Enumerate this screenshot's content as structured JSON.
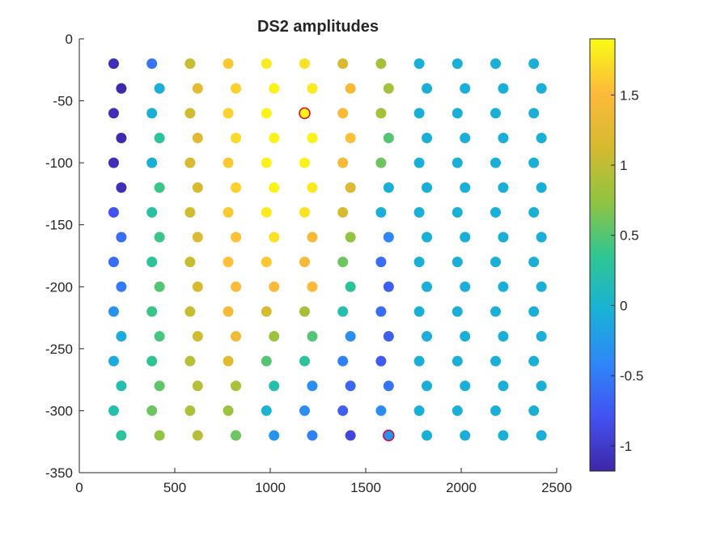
{
  "chart_data": {
    "type": "scatter",
    "title": "DS2 amplitudes",
    "xlabel": "",
    "ylabel": "",
    "xlim": [
      0,
      2500
    ],
    "ylim": [
      -350,
      0
    ],
    "x_ticks": [
      0,
      500,
      1000,
      1500,
      2000,
      2500
    ],
    "y_ticks": [
      0,
      -50,
      -100,
      -150,
      -200,
      -250,
      -300,
      -350
    ],
    "colorbar": {
      "clim": [
        -1.18,
        1.9
      ],
      "ticks": [
        -1,
        -0.5,
        0,
        0.5,
        1,
        1.5
      ],
      "colormap": "parula",
      "colormap_stops": [
        "#3e26a8",
        "#4352f1",
        "#2e87f7",
        "#19b2d5",
        "#30c690",
        "#91c441",
        "#d6ba2f",
        "#fdba3a",
        "#f9fb15"
      ]
    },
    "highlight_edge_color": "#e0002a",
    "points": [
      {
        "x": 180,
        "y": -20,
        "v": -1.1
      },
      {
        "x": 380,
        "y": -20,
        "v": -0.55
      },
      {
        "x": 580,
        "y": -20,
        "v": 1.05
      },
      {
        "x": 780,
        "y": -20,
        "v": 1.6
      },
      {
        "x": 980,
        "y": -20,
        "v": 1.8
      },
      {
        "x": 1180,
        "y": -20,
        "v": 1.75
      },
      {
        "x": 1380,
        "y": -20,
        "v": 1.15
      },
      {
        "x": 1580,
        "y": -20,
        "v": 0.85
      },
      {
        "x": 1780,
        "y": -20,
        "v": -0.05
      },
      {
        "x": 1980,
        "y": -20,
        "v": -0.05
      },
      {
        "x": 2180,
        "y": -20,
        "v": -0.05
      },
      {
        "x": 2380,
        "y": -20,
        "v": -0.05
      },
      {
        "x": 220,
        "y": -40,
        "v": -1.15
      },
      {
        "x": 420,
        "y": -40,
        "v": -0.05
      },
      {
        "x": 620,
        "y": -40,
        "v": 1.3
      },
      {
        "x": 820,
        "y": -40,
        "v": 1.65
      },
      {
        "x": 1020,
        "y": -40,
        "v": 1.85
      },
      {
        "x": 1220,
        "y": -40,
        "v": 1.8
      },
      {
        "x": 1420,
        "y": -40,
        "v": 1.45
      },
      {
        "x": 1620,
        "y": -40,
        "v": 0.85
      },
      {
        "x": 1820,
        "y": -40,
        "v": -0.05
      },
      {
        "x": 2020,
        "y": -40,
        "v": -0.05
      },
      {
        "x": 2220,
        "y": -40,
        "v": -0.05
      },
      {
        "x": 2420,
        "y": -40,
        "v": -0.05
      },
      {
        "x": 180,
        "y": -60,
        "v": -1.1
      },
      {
        "x": 380,
        "y": -60,
        "v": -0.05
      },
      {
        "x": 580,
        "y": -60,
        "v": 1.1
      },
      {
        "x": 780,
        "y": -60,
        "v": 1.65
      },
      {
        "x": 980,
        "y": -60,
        "v": 1.85
      },
      {
        "x": 1180,
        "y": -60,
        "v": 1.85,
        "highlight": true
      },
      {
        "x": 1380,
        "y": -60,
        "v": 1.5
      },
      {
        "x": 1580,
        "y": -60,
        "v": 0.85
      },
      {
        "x": 1780,
        "y": -60,
        "v": -0.05
      },
      {
        "x": 1980,
        "y": -60,
        "v": -0.05
      },
      {
        "x": 2180,
        "y": -60,
        "v": -0.05
      },
      {
        "x": 2380,
        "y": -60,
        "v": -0.05
      },
      {
        "x": 220,
        "y": -80,
        "v": -1.15
      },
      {
        "x": 420,
        "y": -80,
        "v": 0.3
      },
      {
        "x": 620,
        "y": -80,
        "v": 1.25
      },
      {
        "x": 820,
        "y": -80,
        "v": 1.7
      },
      {
        "x": 1020,
        "y": -80,
        "v": 1.85
      },
      {
        "x": 1220,
        "y": -80,
        "v": 1.85
      },
      {
        "x": 1420,
        "y": -80,
        "v": 1.55
      },
      {
        "x": 1620,
        "y": -80,
        "v": 0.5
      },
      {
        "x": 1820,
        "y": -80,
        "v": -0.05
      },
      {
        "x": 2020,
        "y": -80,
        "v": -0.05
      },
      {
        "x": 2220,
        "y": -80,
        "v": -0.05
      },
      {
        "x": 2420,
        "y": -80,
        "v": -0.05
      },
      {
        "x": 180,
        "y": -100,
        "v": -1.1
      },
      {
        "x": 380,
        "y": -100,
        "v": -0.05
      },
      {
        "x": 580,
        "y": -100,
        "v": 1.15
      },
      {
        "x": 780,
        "y": -100,
        "v": 1.6
      },
      {
        "x": 980,
        "y": -100,
        "v": 1.85
      },
      {
        "x": 1180,
        "y": -100,
        "v": 1.85
      },
      {
        "x": 1380,
        "y": -100,
        "v": 1.45
      },
      {
        "x": 1580,
        "y": -100,
        "v": 0.6
      },
      {
        "x": 1780,
        "y": -100,
        "v": -0.05
      },
      {
        "x": 1980,
        "y": -100,
        "v": -0.05
      },
      {
        "x": 2180,
        "y": -100,
        "v": -0.05
      },
      {
        "x": 2380,
        "y": -100,
        "v": -0.05
      },
      {
        "x": 220,
        "y": -120,
        "v": -1.1
      },
      {
        "x": 420,
        "y": -120,
        "v": 0.4
      },
      {
        "x": 620,
        "y": -120,
        "v": 1.15
      },
      {
        "x": 820,
        "y": -120,
        "v": 1.65
      },
      {
        "x": 1020,
        "y": -120,
        "v": 1.85
      },
      {
        "x": 1220,
        "y": -120,
        "v": 1.8
      },
      {
        "x": 1420,
        "y": -120,
        "v": 1.2
      },
      {
        "x": 1620,
        "y": -120,
        "v": -0.05
      },
      {
        "x": 1820,
        "y": -120,
        "v": -0.05
      },
      {
        "x": 2020,
        "y": -120,
        "v": -0.05
      },
      {
        "x": 2220,
        "y": -120,
        "v": -0.05
      },
      {
        "x": 2420,
        "y": -120,
        "v": -0.05
      },
      {
        "x": 180,
        "y": -140,
        "v": -0.8
      },
      {
        "x": 380,
        "y": -140,
        "v": 0.25
      },
      {
        "x": 580,
        "y": -140,
        "v": 1.1
      },
      {
        "x": 780,
        "y": -140,
        "v": 1.6
      },
      {
        "x": 980,
        "y": -140,
        "v": 1.8
      },
      {
        "x": 1180,
        "y": -140,
        "v": 1.75
      },
      {
        "x": 1380,
        "y": -140,
        "v": 1.15
      },
      {
        "x": 1580,
        "y": -140,
        "v": -0.05
      },
      {
        "x": 1780,
        "y": -140,
        "v": -0.05
      },
      {
        "x": 1980,
        "y": -140,
        "v": -0.05
      },
      {
        "x": 2180,
        "y": -140,
        "v": -0.05
      },
      {
        "x": 2380,
        "y": -140,
        "v": -0.05
      },
      {
        "x": 220,
        "y": -160,
        "v": -0.6
      },
      {
        "x": 420,
        "y": -160,
        "v": 0.4
      },
      {
        "x": 620,
        "y": -160,
        "v": 1.2
      },
      {
        "x": 820,
        "y": -160,
        "v": 1.55
      },
      {
        "x": 1020,
        "y": -160,
        "v": 1.75
      },
      {
        "x": 1220,
        "y": -160,
        "v": 1.45
      },
      {
        "x": 1420,
        "y": -160,
        "v": 0.75
      },
      {
        "x": 1620,
        "y": -160,
        "v": -0.4
      },
      {
        "x": 1820,
        "y": -160,
        "v": -0.05
      },
      {
        "x": 2020,
        "y": -160,
        "v": -0.05
      },
      {
        "x": 2220,
        "y": -160,
        "v": -0.05
      },
      {
        "x": 2420,
        "y": -160,
        "v": -0.05
      },
      {
        "x": 180,
        "y": -180,
        "v": -0.6
      },
      {
        "x": 380,
        "y": -180,
        "v": 0.3
      },
      {
        "x": 580,
        "y": -180,
        "v": 1.05
      },
      {
        "x": 780,
        "y": -180,
        "v": 1.55
      },
      {
        "x": 980,
        "y": -180,
        "v": 1.6
      },
      {
        "x": 1180,
        "y": -180,
        "v": 1.45
      },
      {
        "x": 1380,
        "y": -180,
        "v": 0.6
      },
      {
        "x": 1580,
        "y": -180,
        "v": -0.6
      },
      {
        "x": 1780,
        "y": -180,
        "v": -0.05
      },
      {
        "x": 1980,
        "y": -180,
        "v": -0.05
      },
      {
        "x": 2180,
        "y": -180,
        "v": -0.05
      },
      {
        "x": 2380,
        "y": -180,
        "v": -0.05
      },
      {
        "x": 220,
        "y": -200,
        "v": -0.5
      },
      {
        "x": 420,
        "y": -200,
        "v": 0.5
      },
      {
        "x": 620,
        "y": -200,
        "v": 1.15
      },
      {
        "x": 820,
        "y": -200,
        "v": 1.5
      },
      {
        "x": 1020,
        "y": -200,
        "v": 1.5
      },
      {
        "x": 1220,
        "y": -200,
        "v": 1.5
      },
      {
        "x": 1420,
        "y": -200,
        "v": 0.3
      },
      {
        "x": 1620,
        "y": -200,
        "v": -0.7
      },
      {
        "x": 1820,
        "y": -200,
        "v": -0.05
      },
      {
        "x": 2020,
        "y": -200,
        "v": -0.05
      },
      {
        "x": 2220,
        "y": -200,
        "v": -0.05
      },
      {
        "x": 2420,
        "y": -200,
        "v": -0.05
      },
      {
        "x": 180,
        "y": -220,
        "v": -0.3
      },
      {
        "x": 380,
        "y": -220,
        "v": 0.4
      },
      {
        "x": 580,
        "y": -220,
        "v": 1.05
      },
      {
        "x": 780,
        "y": -220,
        "v": 1.45
      },
      {
        "x": 980,
        "y": -220,
        "v": 1.15
      },
      {
        "x": 1180,
        "y": -220,
        "v": 0.85
      },
      {
        "x": 1380,
        "y": -220,
        "v": 0.2
      },
      {
        "x": 1580,
        "y": -220,
        "v": -0.6
      },
      {
        "x": 1780,
        "y": -220,
        "v": -0.05
      },
      {
        "x": 1980,
        "y": -220,
        "v": -0.05
      },
      {
        "x": 2180,
        "y": -220,
        "v": -0.05
      },
      {
        "x": 2380,
        "y": -220,
        "v": -0.05
      },
      {
        "x": 220,
        "y": -240,
        "v": -0.1
      },
      {
        "x": 420,
        "y": -240,
        "v": 0.45
      },
      {
        "x": 620,
        "y": -240,
        "v": 1.1
      },
      {
        "x": 820,
        "y": -240,
        "v": 1.4
      },
      {
        "x": 1020,
        "y": -240,
        "v": 0.8
      },
      {
        "x": 1220,
        "y": -240,
        "v": 0.5
      },
      {
        "x": 1420,
        "y": -240,
        "v": -0.35
      },
      {
        "x": 1620,
        "y": -240,
        "v": -0.7
      },
      {
        "x": 1820,
        "y": -240,
        "v": -0.05
      },
      {
        "x": 2020,
        "y": -240,
        "v": -0.05
      },
      {
        "x": 2220,
        "y": -240,
        "v": -0.05
      },
      {
        "x": 2420,
        "y": -240,
        "v": -0.05
      },
      {
        "x": 180,
        "y": -260,
        "v": -0.1
      },
      {
        "x": 380,
        "y": -260,
        "v": 0.35
      },
      {
        "x": 580,
        "y": -260,
        "v": 0.95
      },
      {
        "x": 780,
        "y": -260,
        "v": 1.25
      },
      {
        "x": 980,
        "y": -260,
        "v": 0.5
      },
      {
        "x": 1180,
        "y": -260,
        "v": 0.3
      },
      {
        "x": 1380,
        "y": -260,
        "v": -0.45
      },
      {
        "x": 1580,
        "y": -260,
        "v": -0.75
      },
      {
        "x": 1780,
        "y": -260,
        "v": -0.05
      },
      {
        "x": 1980,
        "y": -260,
        "v": -0.05
      },
      {
        "x": 2180,
        "y": -260,
        "v": -0.05
      },
      {
        "x": 2380,
        "y": -260,
        "v": -0.05
      },
      {
        "x": 220,
        "y": -280,
        "v": 0.2
      },
      {
        "x": 420,
        "y": -280,
        "v": 0.55
      },
      {
        "x": 620,
        "y": -280,
        "v": 0.95
      },
      {
        "x": 820,
        "y": -280,
        "v": 0.9
      },
      {
        "x": 1020,
        "y": -280,
        "v": 0.2
      },
      {
        "x": 1220,
        "y": -280,
        "v": -0.35
      },
      {
        "x": 1420,
        "y": -280,
        "v": -0.65
      },
      {
        "x": 1620,
        "y": -280,
        "v": -0.55
      },
      {
        "x": 1820,
        "y": -280,
        "v": -0.05
      },
      {
        "x": 2020,
        "y": -280,
        "v": -0.05
      },
      {
        "x": 2220,
        "y": -280,
        "v": -0.05
      },
      {
        "x": 2420,
        "y": -280,
        "v": -0.05
      },
      {
        "x": 180,
        "y": -300,
        "v": 0.2
      },
      {
        "x": 380,
        "y": -300,
        "v": 0.6
      },
      {
        "x": 580,
        "y": -300,
        "v": 0.9
      },
      {
        "x": 780,
        "y": -300,
        "v": 0.8
      },
      {
        "x": 980,
        "y": -300,
        "v": 0.0
      },
      {
        "x": 1180,
        "y": -300,
        "v": -0.35
      },
      {
        "x": 1380,
        "y": -300,
        "v": -0.7
      },
      {
        "x": 1580,
        "y": -300,
        "v": -0.35
      },
      {
        "x": 1780,
        "y": -300,
        "v": -0.05
      },
      {
        "x": 1980,
        "y": -300,
        "v": -0.05
      },
      {
        "x": 2180,
        "y": -300,
        "v": -0.05
      },
      {
        "x": 2380,
        "y": -300,
        "v": -0.05
      },
      {
        "x": 220,
        "y": -320,
        "v": 0.3
      },
      {
        "x": 420,
        "y": -320,
        "v": 0.75
      },
      {
        "x": 620,
        "y": -320,
        "v": 0.95
      },
      {
        "x": 820,
        "y": -320,
        "v": 0.6
      },
      {
        "x": 1020,
        "y": -320,
        "v": -0.3
      },
      {
        "x": 1220,
        "y": -320,
        "v": -0.45
      },
      {
        "x": 1420,
        "y": -320,
        "v": -0.9
      },
      {
        "x": 1620,
        "y": -320,
        "v": -0.3,
        "highlight": true
      },
      {
        "x": 1820,
        "y": -320,
        "v": -0.05
      },
      {
        "x": 2020,
        "y": -320,
        "v": -0.05
      },
      {
        "x": 2220,
        "y": -320,
        "v": -0.05
      },
      {
        "x": 2420,
        "y": -320,
        "v": -0.05
      }
    ]
  }
}
